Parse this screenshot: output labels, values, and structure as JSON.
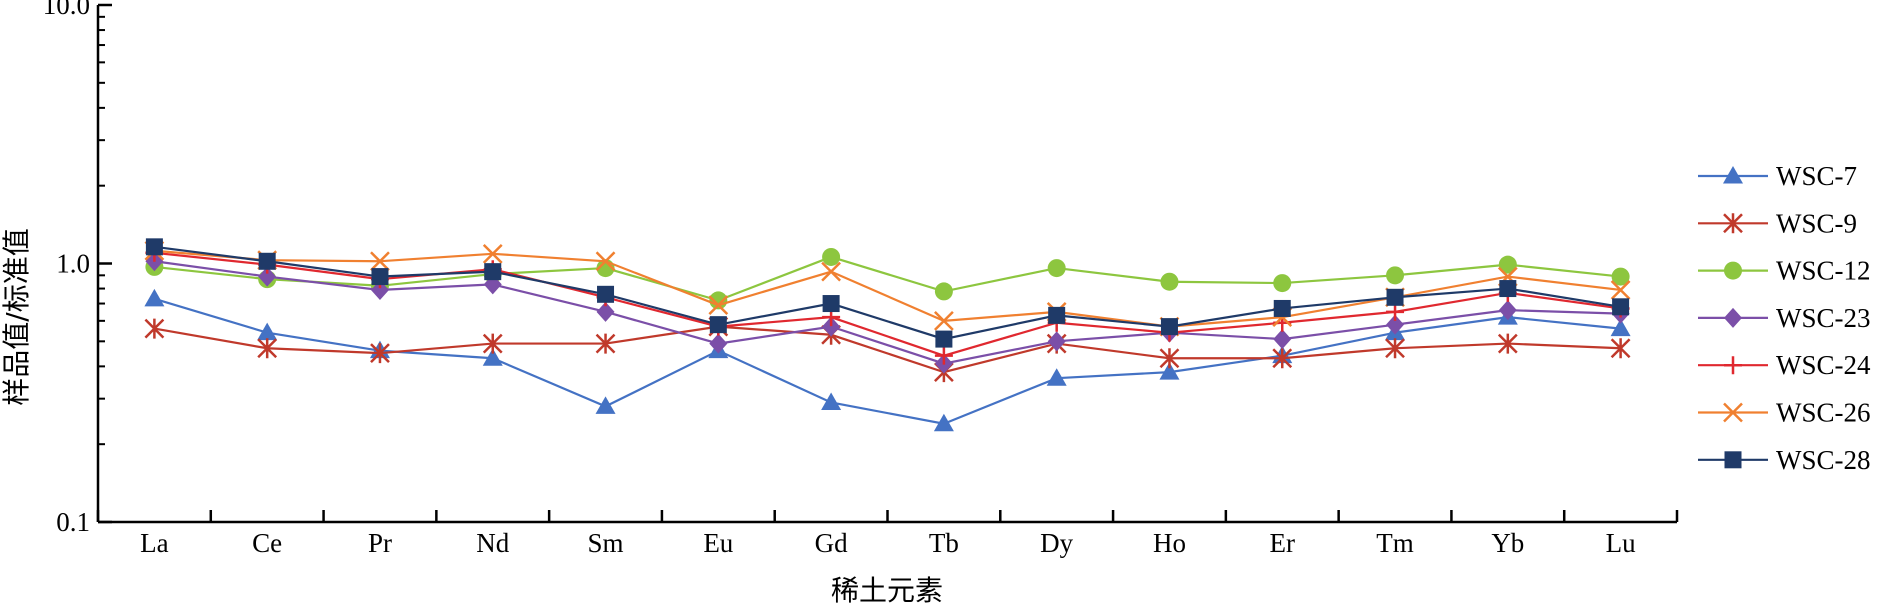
{
  "chart_data": {
    "type": "line",
    "xlabel": "稀土元素",
    "ylabel": "样品值/标准值",
    "yscale": "log",
    "ylim": [
      0.1,
      10.0
    ],
    "yticks": [
      "0.1",
      "1.0",
      "10.0"
    ],
    "grid": false,
    "legend_position": "right",
    "categories": [
      "La",
      "Ce",
      "Pr",
      "Nd",
      "Sm",
      "Eu",
      "Gd",
      "Tb",
      "Dy",
      "Ho",
      "Er",
      "Tm",
      "Yb",
      "Lu"
    ],
    "series": [
      {
        "name": "WSC-7",
        "color": "#4472C4",
        "marker": "triangle",
        "values": [
          0.73,
          0.54,
          0.46,
          0.43,
          0.28,
          0.46,
          0.29,
          0.24,
          0.36,
          0.38,
          0.44,
          0.54,
          0.62,
          0.56
        ]
      },
      {
        "name": "WSC-9",
        "color": "#C0392B",
        "marker": "star",
        "values": [
          0.56,
          0.47,
          0.45,
          0.49,
          0.49,
          0.57,
          0.53,
          0.38,
          0.49,
          0.43,
          0.43,
          0.47,
          0.49,
          0.47
        ]
      },
      {
        "name": "WSC-12",
        "color": "#8DC63F",
        "marker": "circle",
        "values": [
          0.97,
          0.87,
          0.82,
          0.91,
          0.96,
          0.72,
          1.06,
          0.78,
          0.96,
          0.85,
          0.84,
          0.9,
          0.99,
          0.89
        ]
      },
      {
        "name": "WSC-23",
        "color": "#7B4FA8",
        "marker": "diamond",
        "values": [
          1.02,
          0.89,
          0.79,
          0.83,
          0.65,
          0.49,
          0.57,
          0.41,
          0.5,
          0.54,
          0.51,
          0.58,
          0.66,
          0.64
        ]
      },
      {
        "name": "WSC-24",
        "color": "#E0282F",
        "marker": "plus",
        "values": [
          1.1,
          0.99,
          0.87,
          0.95,
          0.74,
          0.57,
          0.62,
          0.44,
          0.59,
          0.54,
          0.59,
          0.65,
          0.77,
          0.67
        ]
      },
      {
        "name": "WSC-26",
        "color": "#F08030",
        "marker": "x",
        "values": [
          1.12,
          1.03,
          1.02,
          1.09,
          1.02,
          0.69,
          0.93,
          0.6,
          0.65,
          0.57,
          0.62,
          0.74,
          0.89,
          0.79
        ]
      },
      {
        "name": "WSC-28",
        "color": "#1F3A68",
        "marker": "square",
        "values": [
          1.16,
          1.02,
          0.89,
          0.93,
          0.76,
          0.58,
          0.7,
          0.51,
          0.63,
          0.57,
          0.67,
          0.74,
          0.8,
          0.68
        ]
      }
    ]
  }
}
